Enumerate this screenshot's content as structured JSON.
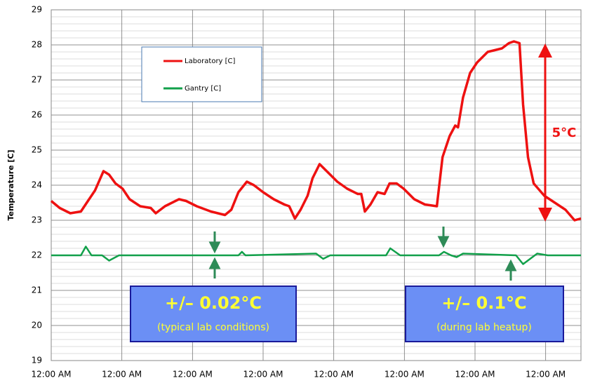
{
  "chart_data": {
    "type": "line",
    "y_label": "Temperature [C]",
    "ylim": [
      19,
      29
    ],
    "yticks": [
      19,
      20,
      21,
      22,
      23,
      24,
      25,
      26,
      27,
      28,
      29
    ],
    "minor_grid": 0.2,
    "xlim": [
      0,
      7.5
    ],
    "xticks": [
      {
        "value": 0,
        "label": "12:00 AM"
      },
      {
        "value": 1,
        "label": "12:00 AM"
      },
      {
        "value": 2,
        "label": "12:00 AM"
      },
      {
        "value": 3,
        "label": "12:00 AM"
      },
      {
        "value": 4,
        "label": "12:00 AM"
      },
      {
        "value": 5,
        "label": "12:00 AM"
      },
      {
        "value": 6,
        "label": "12:00 AM"
      },
      {
        "value": 7,
        "label": "12:00 AM"
      }
    ],
    "grid": true,
    "series": [
      {
        "name": "Laboratory [C]",
        "color": "#ee1111",
        "x": [
          0,
          0.12,
          0.27,
          0.42,
          0.52,
          0.62,
          0.74,
          0.82,
          0.91,
          1.01,
          1.11,
          1.26,
          1.41,
          1.48,
          1.61,
          1.81,
          1.91,
          2.06,
          2.26,
          2.46,
          2.55,
          2.65,
          2.77,
          2.87,
          3.0,
          3.15,
          3.3,
          3.37,
          3.45,
          3.53,
          3.63,
          3.7,
          3.8,
          3.9,
          4.05,
          4.19,
          4.34,
          4.39,
          4.44,
          4.52,
          4.62,
          4.72,
          4.79,
          4.89,
          4.99,
          5.14,
          5.29,
          5.46,
          5.54,
          5.64,
          5.72,
          5.76,
          5.83,
          5.93,
          6.03,
          6.18,
          6.38,
          6.48,
          6.55,
          6.63,
          6.68,
          6.75,
          6.83,
          6.98,
          7.13,
          7.28,
          7.41,
          7.5
        ],
        "values": [
          23.55,
          23.35,
          23.2,
          23.25,
          23.55,
          23.85,
          24.4,
          24.3,
          24.05,
          23.9,
          23.6,
          23.4,
          23.35,
          23.2,
          23.4,
          23.6,
          23.55,
          23.4,
          23.25,
          23.15,
          23.3,
          23.8,
          24.1,
          24.0,
          23.8,
          23.6,
          23.45,
          23.4,
          23.05,
          23.3,
          23.7,
          24.2,
          24.6,
          24.4,
          24.1,
          23.9,
          23.75,
          23.75,
          23.25,
          23.45,
          23.8,
          23.75,
          24.05,
          24.05,
          23.9,
          23.6,
          23.45,
          23.4,
          24.8,
          25.4,
          25.7,
          25.65,
          26.5,
          27.2,
          27.5,
          27.8,
          27.9,
          28.05,
          28.1,
          28.05,
          26.3,
          24.8,
          24.05,
          23.7,
          23.5,
          23.3,
          23.0,
          23.05
        ]
      },
      {
        "name": "Gantry [C]",
        "color": "#11a04a",
        "x": [
          0,
          0.42,
          0.49,
          0.57,
          0.72,
          0.82,
          0.96,
          2.65,
          2.7,
          2.75,
          3.75,
          3.85,
          3.95,
          4.74,
          4.8,
          4.94,
          5.49,
          5.56,
          5.66,
          5.74,
          5.83,
          6.58,
          6.68,
          6.88,
          7.03,
          7.5
        ],
        "values": [
          22.0,
          22.0,
          22.25,
          22.0,
          22.0,
          21.85,
          22.0,
          22.0,
          22.1,
          22.0,
          22.05,
          21.9,
          22.0,
          22.0,
          22.2,
          22.0,
          22.0,
          22.1,
          22.0,
          21.95,
          22.05,
          22.0,
          21.75,
          22.05,
          22.0,
          22.0
        ]
      }
    ],
    "annotations": [
      "5°C",
      "+/– 0.02°C",
      "(typical lab conditions)",
      "+/– 0.1°C",
      "(during lab heatup)"
    ]
  }
}
